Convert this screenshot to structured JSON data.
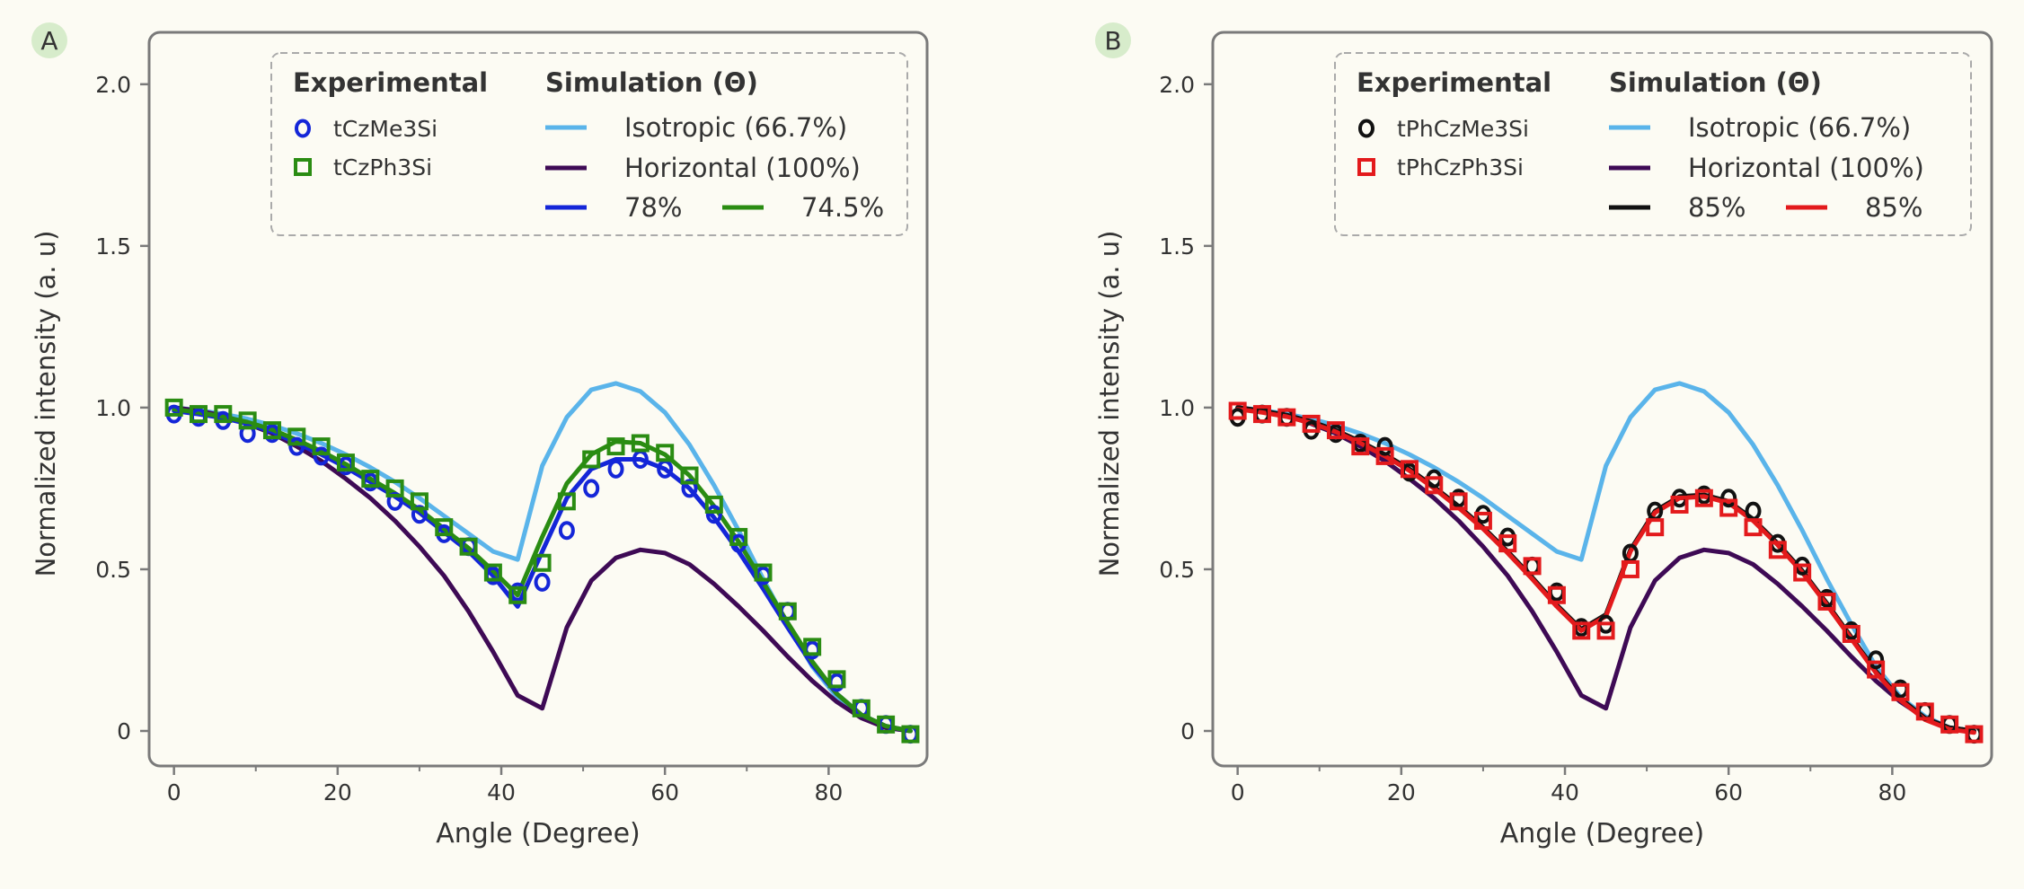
{
  "chart_data": [
    {
      "panel": "A",
      "type": "line",
      "xlabel": "Angle (Degree)",
      "ylabel": "Normalized intensity (a. u)",
      "xlim": [
        -1.5,
        90.5
      ],
      "ylim": [
        -0.05,
        2.08
      ],
      "xticks": [
        0,
        20,
        40,
        60,
        80
      ],
      "yticks": [
        0,
        0.5,
        1.0,
        1.5,
        2.0
      ],
      "ytick_labels": [
        "0",
        "0.5",
        "1.0",
        "1.5",
        "2.0"
      ],
      "grid": false,
      "legend_position": "top-right",
      "legend_exp_title": "Experimental",
      "legend_sim_title": "Simulation (Θ)",
      "colors": {
        "isotropic": "#5ab4ea",
        "horizontal": "#3e0a55",
        "series_a": "#1426d8",
        "series_b": "#2a8c12"
      },
      "series": [
        {
          "name": "Isotropic (66.7%)",
          "kind": "line",
          "color": "#5ab4ea",
          "x": [
            0,
            3,
            6,
            9,
            12,
            15,
            18,
            21,
            24,
            27,
            30,
            33,
            36,
            39,
            42,
            45,
            48,
            51,
            54,
            57,
            60,
            63,
            66,
            69,
            72,
            75,
            78,
            81,
            84,
            87,
            90
          ],
          "y": [
            1.0,
            0.992,
            0.98,
            0.965,
            0.945,
            0.92,
            0.89,
            0.855,
            0.815,
            0.77,
            0.72,
            0.665,
            0.61,
            0.555,
            0.53,
            0.82,
            0.97,
            1.055,
            1.075,
            1.05,
            0.985,
            0.885,
            0.76,
            0.62,
            0.47,
            0.33,
            0.2,
            0.105,
            0.045,
            0.01,
            0.0
          ]
        },
        {
          "name": "Horizontal (100%)",
          "kind": "line",
          "color": "#3e0a55",
          "x": [
            0,
            3,
            6,
            9,
            12,
            15,
            18,
            21,
            24,
            27,
            30,
            33,
            36,
            39,
            42,
            45,
            48,
            51,
            54,
            57,
            60,
            63,
            66,
            69,
            72,
            75,
            78,
            81,
            84,
            87,
            90
          ],
          "y": [
            1.0,
            0.99,
            0.975,
            0.95,
            0.92,
            0.88,
            0.835,
            0.78,
            0.72,
            0.65,
            0.57,
            0.48,
            0.37,
            0.245,
            0.11,
            0.07,
            0.32,
            0.465,
            0.535,
            0.56,
            0.55,
            0.515,
            0.455,
            0.385,
            0.31,
            0.23,
            0.155,
            0.09,
            0.04,
            0.01,
            0.0
          ]
        },
        {
          "name": "78%",
          "kind": "line",
          "color": "#1426d8",
          "x": [
            0,
            3,
            6,
            9,
            12,
            15,
            18,
            21,
            24,
            27,
            30,
            33,
            36,
            39,
            42,
            45,
            48,
            51,
            54,
            57,
            60,
            63,
            66,
            69,
            72,
            75,
            78,
            81,
            84,
            87,
            90
          ],
          "y": [
            0.99,
            0.98,
            0.968,
            0.95,
            0.925,
            0.89,
            0.855,
            0.815,
            0.77,
            0.725,
            0.675,
            0.615,
            0.555,
            0.48,
            0.385,
            0.555,
            0.72,
            0.81,
            0.84,
            0.84,
            0.81,
            0.75,
            0.66,
            0.555,
            0.44,
            0.32,
            0.205,
            0.115,
            0.05,
            0.015,
            0.0
          ]
        },
        {
          "name": "74.5%",
          "kind": "line",
          "color": "#2a8c12",
          "x": [
            0,
            3,
            6,
            9,
            12,
            15,
            18,
            21,
            24,
            27,
            30,
            33,
            36,
            39,
            42,
            45,
            48,
            51,
            54,
            57,
            60,
            63,
            66,
            69,
            72,
            75,
            78,
            81,
            84,
            87,
            90
          ],
          "y": [
            0.995,
            0.985,
            0.972,
            0.955,
            0.932,
            0.9,
            0.865,
            0.825,
            0.78,
            0.735,
            0.685,
            0.625,
            0.565,
            0.495,
            0.42,
            0.6,
            0.765,
            0.855,
            0.895,
            0.89,
            0.855,
            0.79,
            0.695,
            0.585,
            0.46,
            0.335,
            0.215,
            0.115,
            0.05,
            0.015,
            0.0
          ]
        },
        {
          "name": "tCzMe3Si",
          "kind": "circle",
          "color": "#1426d8",
          "x": [
            0,
            3,
            6,
            9,
            12,
            15,
            18,
            21,
            24,
            27,
            30,
            33,
            36,
            39,
            42,
            45,
            48,
            51,
            54,
            57,
            60,
            63,
            66,
            69,
            72,
            75,
            78,
            81,
            84,
            87,
            90
          ],
          "y": [
            0.98,
            0.97,
            0.96,
            0.92,
            0.92,
            0.88,
            0.85,
            0.82,
            0.77,
            0.71,
            0.67,
            0.61,
            0.57,
            0.48,
            0.43,
            0.46,
            0.62,
            0.75,
            0.81,
            0.84,
            0.81,
            0.75,
            0.67,
            0.58,
            0.48,
            0.37,
            0.25,
            0.15,
            0.07,
            0.02,
            -0.01
          ]
        },
        {
          "name": "tCzPh3Si",
          "kind": "square",
          "color": "#2a8c12",
          "x": [
            0,
            3,
            6,
            9,
            12,
            15,
            18,
            21,
            24,
            27,
            30,
            33,
            36,
            39,
            42,
            45,
            48,
            51,
            54,
            57,
            60,
            63,
            66,
            69,
            72,
            75,
            78,
            81,
            84,
            87,
            90
          ],
          "y": [
            1.0,
            0.98,
            0.98,
            0.96,
            0.93,
            0.91,
            0.88,
            0.83,
            0.78,
            0.75,
            0.71,
            0.63,
            0.57,
            0.49,
            0.42,
            0.52,
            0.71,
            0.84,
            0.88,
            0.89,
            0.86,
            0.79,
            0.7,
            0.6,
            0.49,
            0.37,
            0.26,
            0.16,
            0.07,
            0.02,
            -0.01
          ]
        }
      ]
    },
    {
      "panel": "B",
      "type": "line",
      "xlabel": "Angle (Degree)",
      "ylabel": "Normalized intensity (a. u)",
      "xlim": [
        -1.5,
        90.5
      ],
      "ylim": [
        -0.05,
        2.08
      ],
      "xticks": [
        0,
        20,
        40,
        60,
        80
      ],
      "yticks": [
        0,
        0.5,
        1.0,
        1.5,
        2.0
      ],
      "ytick_labels": [
        "0",
        "0.5",
        "1.0",
        "1.5",
        "2.0"
      ],
      "grid": false,
      "legend_position": "top-right",
      "legend_exp_title": "Experimental",
      "legend_sim_title": "Simulation (Θ)",
      "colors": {
        "isotropic": "#5ab4ea",
        "horizontal": "#3e0a55",
        "series_a": "#111111",
        "series_b": "#e31a1c"
      },
      "series": [
        {
          "name": "Isotropic (66.7%)",
          "kind": "line",
          "color": "#5ab4ea",
          "x": [
            0,
            3,
            6,
            9,
            12,
            15,
            18,
            21,
            24,
            27,
            30,
            33,
            36,
            39,
            42,
            45,
            48,
            51,
            54,
            57,
            60,
            63,
            66,
            69,
            72,
            75,
            78,
            81,
            84,
            87,
            90
          ],
          "y": [
            1.0,
            0.992,
            0.98,
            0.965,
            0.945,
            0.92,
            0.89,
            0.855,
            0.815,
            0.77,
            0.72,
            0.665,
            0.61,
            0.555,
            0.53,
            0.82,
            0.97,
            1.055,
            1.075,
            1.05,
            0.985,
            0.885,
            0.76,
            0.62,
            0.47,
            0.33,
            0.2,
            0.105,
            0.045,
            0.01,
            0.0
          ]
        },
        {
          "name": "Horizontal (100%)",
          "kind": "line",
          "color": "#3e0a55",
          "x": [
            0,
            3,
            6,
            9,
            12,
            15,
            18,
            21,
            24,
            27,
            30,
            33,
            36,
            39,
            42,
            45,
            48,
            51,
            54,
            57,
            60,
            63,
            66,
            69,
            72,
            75,
            78,
            81,
            84,
            87,
            90
          ],
          "y": [
            1.0,
            0.99,
            0.975,
            0.95,
            0.92,
            0.88,
            0.835,
            0.78,
            0.72,
            0.65,
            0.57,
            0.48,
            0.37,
            0.245,
            0.11,
            0.07,
            0.32,
            0.465,
            0.535,
            0.56,
            0.55,
            0.515,
            0.455,
            0.385,
            0.31,
            0.23,
            0.155,
            0.09,
            0.04,
            0.01,
            0.0
          ]
        },
        {
          "name": "85%",
          "kind": "line",
          "color": "#111111",
          "x": [
            0,
            3,
            6,
            9,
            12,
            15,
            18,
            21,
            24,
            27,
            30,
            33,
            36,
            39,
            42,
            45,
            48,
            51,
            54,
            57,
            60,
            63,
            66,
            69,
            72,
            75,
            78,
            81,
            84,
            87,
            90
          ],
          "y": [
            1.0,
            0.99,
            0.977,
            0.957,
            0.93,
            0.895,
            0.855,
            0.81,
            0.755,
            0.695,
            0.63,
            0.555,
            0.475,
            0.39,
            0.315,
            0.36,
            0.56,
            0.68,
            0.725,
            0.73,
            0.71,
            0.655,
            0.58,
            0.495,
            0.395,
            0.29,
            0.185,
            0.1,
            0.04,
            0.01,
            0.0
          ]
        },
        {
          "name": "85%",
          "kind": "line",
          "color": "#e31a1c",
          "x": [
            0,
            3,
            6,
            9,
            12,
            15,
            18,
            21,
            24,
            27,
            30,
            33,
            36,
            39,
            42,
            45,
            48,
            51,
            54,
            57,
            60,
            63,
            66,
            69,
            72,
            75,
            78,
            81,
            84,
            87,
            90
          ],
          "y": [
            0.995,
            0.985,
            0.972,
            0.952,
            0.925,
            0.89,
            0.85,
            0.805,
            0.75,
            0.69,
            0.625,
            0.55,
            0.47,
            0.385,
            0.31,
            0.355,
            0.555,
            0.675,
            0.72,
            0.725,
            0.705,
            0.65,
            0.575,
            0.49,
            0.39,
            0.285,
            0.18,
            0.095,
            0.035,
            0.005,
            -0.005
          ]
        },
        {
          "name": "tPhCzMe3Si",
          "kind": "circle",
          "color": "#111111",
          "x": [
            0,
            3,
            6,
            9,
            12,
            15,
            18,
            21,
            24,
            27,
            30,
            33,
            36,
            39,
            42,
            45,
            48,
            51,
            54,
            57,
            60,
            63,
            66,
            69,
            72,
            75,
            78,
            81,
            84,
            87,
            90
          ],
          "y": [
            0.97,
            0.98,
            0.97,
            0.93,
            0.92,
            0.89,
            0.88,
            0.8,
            0.78,
            0.72,
            0.67,
            0.6,
            0.51,
            0.43,
            0.32,
            0.33,
            0.55,
            0.68,
            0.72,
            0.73,
            0.72,
            0.68,
            0.58,
            0.51,
            0.41,
            0.31,
            0.22,
            0.13,
            0.06,
            0.02,
            -0.01
          ]
        },
        {
          "name": "tPhCzPh3Si",
          "kind": "square",
          "color": "#e31a1c",
          "x": [
            0,
            3,
            6,
            9,
            12,
            15,
            18,
            21,
            24,
            27,
            30,
            33,
            36,
            39,
            42,
            45,
            48,
            51,
            54,
            57,
            60,
            63,
            66,
            69,
            72,
            75,
            78,
            81,
            84,
            87,
            90
          ],
          "y": [
            0.99,
            0.98,
            0.97,
            0.95,
            0.93,
            0.88,
            0.85,
            0.81,
            0.76,
            0.71,
            0.65,
            0.58,
            0.51,
            0.42,
            0.31,
            0.31,
            0.5,
            0.63,
            0.7,
            0.72,
            0.69,
            0.63,
            0.56,
            0.49,
            0.4,
            0.3,
            0.19,
            0.12,
            0.06,
            0.02,
            -0.01
          ]
        }
      ]
    }
  ]
}
